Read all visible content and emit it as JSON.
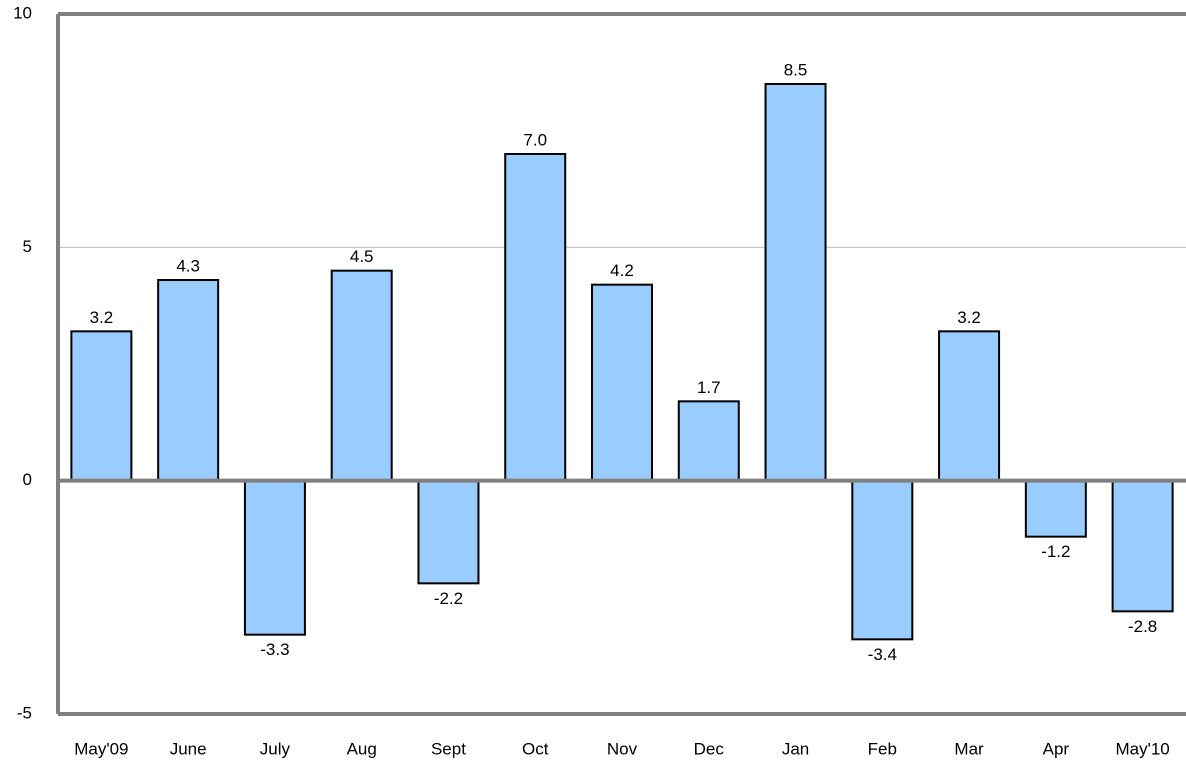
{
  "chart_data": {
    "type": "bar",
    "categories": [
      "May'09",
      "June",
      "July",
      "Aug",
      "Sept",
      "Oct",
      "Nov",
      "Dec",
      "Jan",
      "Feb",
      "Mar",
      "Apr",
      "May'10"
    ],
    "values": [
      3.2,
      4.3,
      -3.3,
      4.5,
      -2.2,
      7.0,
      4.2,
      1.7,
      8.5,
      -3.4,
      3.2,
      -1.2,
      -2.8
    ],
    "value_labels": [
      "3.2",
      "4.3",
      "-3.3",
      "4.5",
      "-2.2",
      "7.0",
      "4.2",
      "1.7",
      "8.5",
      "-3.4",
      "3.2",
      "-1.2",
      "-2.8"
    ],
    "color": "#99ccff",
    "ylim": [
      -5,
      10
    ],
    "yticks": [
      -5,
      0,
      5,
      10
    ],
    "grid": true
  }
}
